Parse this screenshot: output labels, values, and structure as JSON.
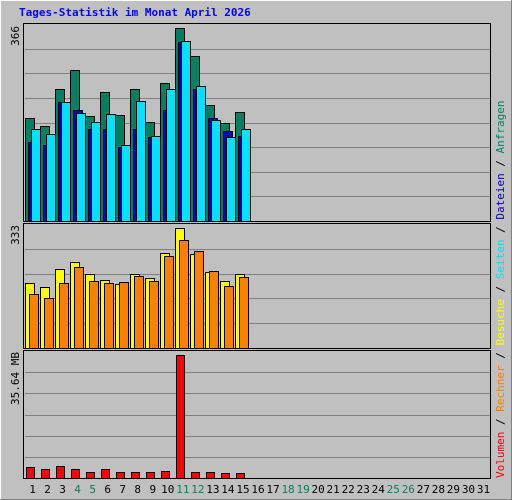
{
  "chart_data": {
    "type": "bar",
    "title": "Tages-Statistik im Monat April 2026",
    "days": [
      "1",
      "2",
      "3",
      "4",
      "5",
      "6",
      "7",
      "8",
      "9",
      "10",
      "11",
      "12",
      "13",
      "14",
      "15",
      "16",
      "17",
      "18",
      "19",
      "20",
      "21",
      "22",
      "23",
      "24",
      "25",
      "26",
      "27",
      "28",
      "29",
      "30",
      "31"
    ],
    "weekend_days": [
      "4",
      "5",
      "11",
      "12",
      "18",
      "19",
      "25",
      "26"
    ],
    "side_label": {
      "volumen": "Volumen",
      "rechner": "Rechner",
      "besuche": "Besuche",
      "seiten": "Seiten",
      "dateien": "Dateien",
      "anfragen": "Anfragen",
      "sep": " / "
    },
    "panels": {
      "top": {
        "max_label": "366",
        "ymax": 366,
        "series": [
          {
            "key": "anfragen",
            "color": "#008060",
            "values": [
              195,
              180,
              250,
              286,
              200,
              245,
              201,
              250,
              188,
              262,
              366,
              312,
              220,
              185,
              207
            ]
          },
          {
            "key": "dateien",
            "color": "#0000c0",
            "values": [
              150,
              145,
              225,
              210,
              175,
              175,
              140,
              175,
              160,
              210,
              340,
              250,
              195,
              170,
              162
            ]
          },
          {
            "key": "seiten",
            "color": "#00e0ff",
            "values": [
              175,
              165,
              225,
              205,
              188,
              202,
              145,
              228,
              162,
              250,
              342,
              256,
              192,
              160,
              175
            ]
          }
        ]
      },
      "mid": {
        "max_label": "333",
        "ymax": 333,
        "series": [
          {
            "key": "besuche",
            "color": "#ffff00",
            "values": [
              180,
              170,
              220,
              240,
              205,
              190,
              178,
              205,
              195,
              265,
              333,
              260,
              210,
              185,
              205
            ]
          },
          {
            "key": "rechner",
            "color": "#ff8000",
            "values": [
              150,
              140,
              180,
              225,
              185,
              180,
              183,
              200,
              185,
              255,
              300,
              270,
              215,
              172,
              198
            ]
          }
        ]
      },
      "bottom": {
        "max_label": "35.64 MB",
        "ymax": 35.64,
        "series": [
          {
            "key": "volumen",
            "color": "#ff0000",
            "values": [
              3.2,
              2.5,
              3.5,
              2.5,
              1.8,
              2.5,
              1.6,
              1.6,
              1.8,
              1.9,
              35.64,
              1.8,
              1.8,
              1.5,
              1.4
            ]
          }
        ]
      }
    },
    "colors": {
      "title": "#0000ff",
      "weekend_label": "#00805c",
      "weekday_label": "#000000",
      "grid": "#808080",
      "bg": "#c0c0c0",
      "outline": "#000000"
    }
  }
}
